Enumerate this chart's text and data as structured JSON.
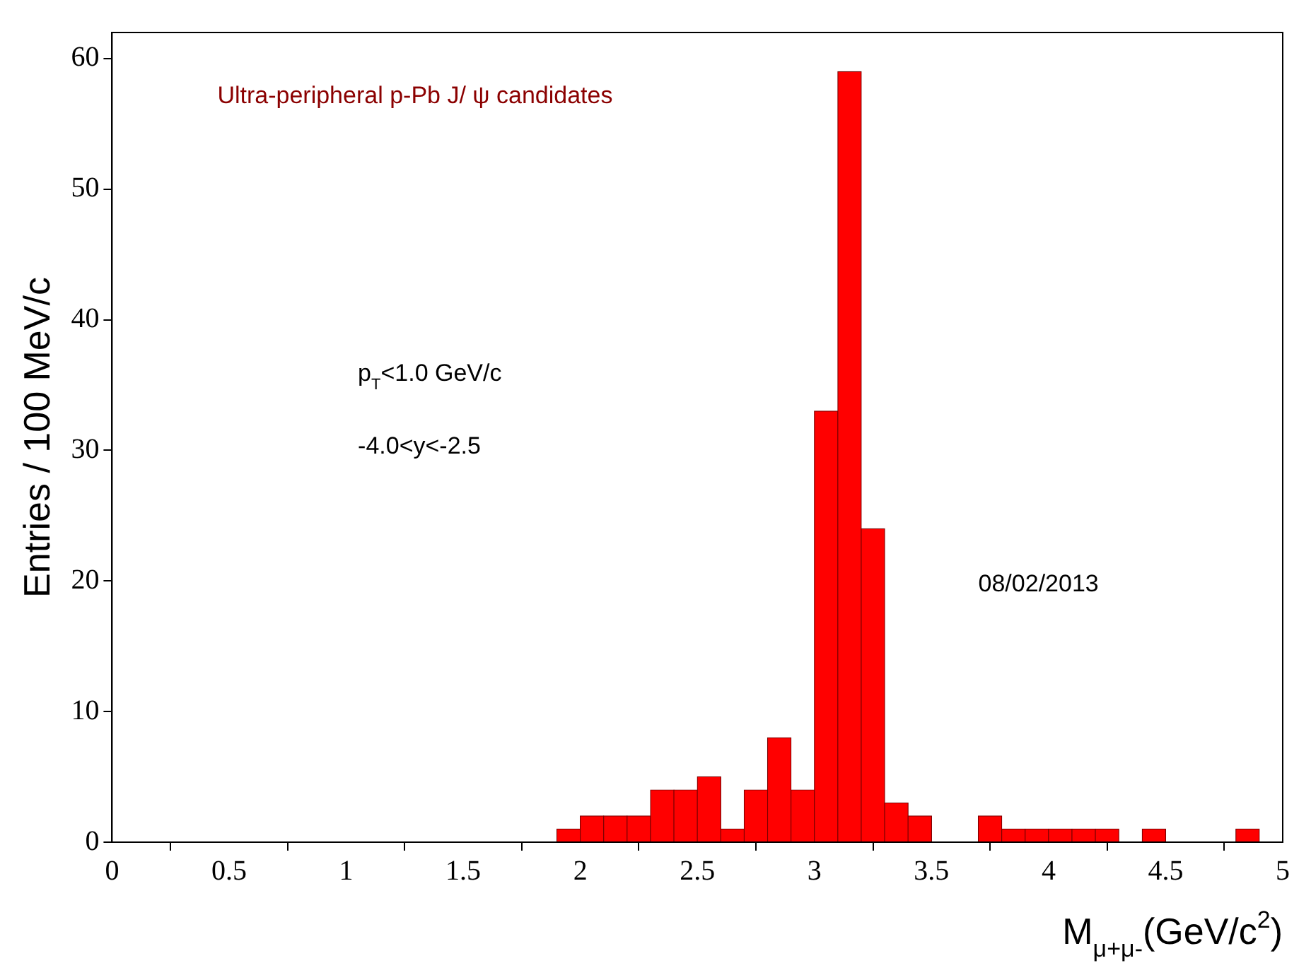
{
  "chart_data": {
    "type": "histogram",
    "title": "Ultra-peripheral p-Pb J/ ψ candidates",
    "xlabel": "M$_{μ+μ-}$(GeV/c$^{2}$)",
    "ylabel": "Entries / 100 MeV/c",
    "bins": [
      0,
      0.1,
      0.2,
      0.3,
      0.4,
      0.5,
      0.6,
      0.7,
      0.8,
      0.9,
      1,
      1.1,
      1.2,
      1.3,
      1.4,
      1.5,
      1.6,
      1.7,
      1.8,
      1.9,
      2,
      2.1,
      2.2,
      2.3,
      2.4,
      2.5,
      2.6,
      2.7,
      2.8,
      2.9,
      3,
      3.1,
      3.2,
      3.3,
      3.4,
      3.5,
      3.6,
      3.7,
      3.8,
      3.9,
      4,
      4.1,
      4.2,
      4.3,
      4.4,
      4.5,
      4.6,
      4.7,
      4.8,
      4.9,
      5
    ],
    "values": [
      0,
      0,
      0,
      0,
      0,
      0,
      0,
      0,
      0,
      0,
      0,
      0,
      0,
      0,
      0,
      0,
      0,
      0,
      0,
      1,
      2,
      2,
      2,
      4,
      4,
      5,
      1,
      4,
      8,
      4,
      33,
      59,
      24,
      3,
      2,
      0,
      0,
      2,
      1,
      1,
      1,
      1,
      1,
      0,
      1,
      0,
      0,
      0,
      1,
      0
    ],
    "color": "#ff0000",
    "xlim": [
      0,
      5
    ],
    "xticks": [
      0,
      0.5,
      1,
      1.5,
      2,
      2.5,
      3,
      3.5,
      4,
      4.5,
      5
    ],
    "ylim": [
      0,
      62
    ],
    "yticks": [
      0,
      10,
      20,
      30,
      40,
      50,
      60
    ],
    "grid": false,
    "legend": false,
    "annotations": [
      "p$_{T}$<1.0 GeV/c",
      "-4.0<y<-2.5",
      "08/02/2013"
    ]
  }
}
